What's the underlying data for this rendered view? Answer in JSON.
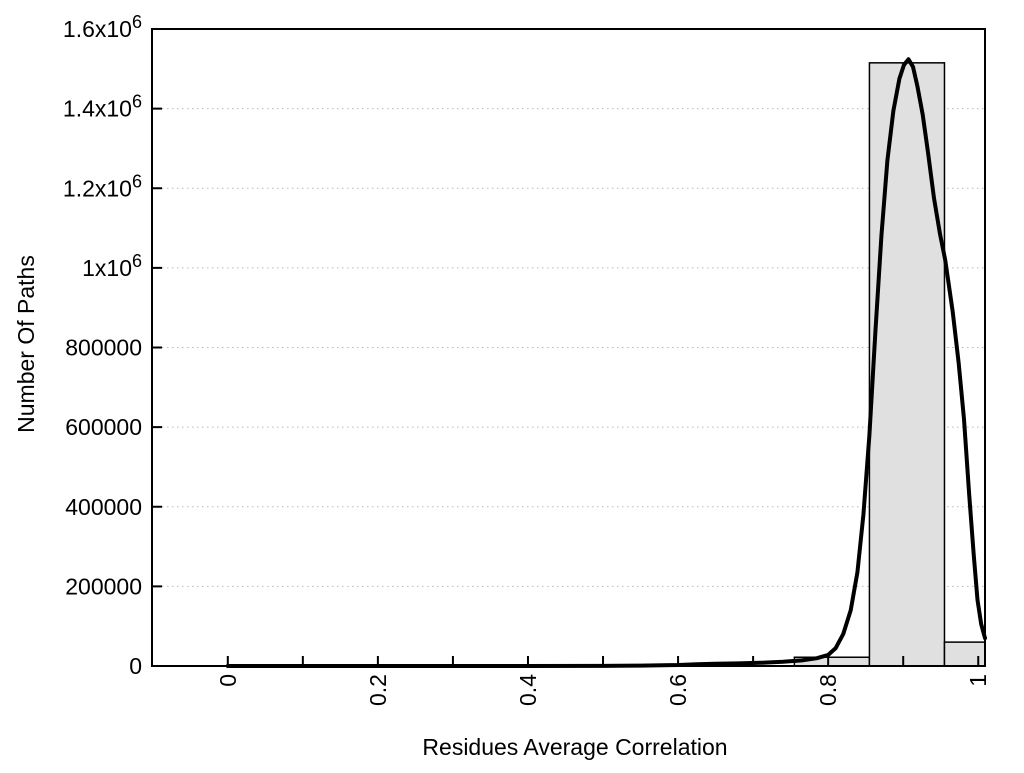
{
  "chart_data": {
    "type": "bar",
    "subtype": "histogram-with-density-curve",
    "title": "",
    "xlabel": "Residues Average Correlation",
    "ylabel": "Number Of Paths",
    "xlim": [
      -0.101,
      1.009
    ],
    "ylim": [
      0,
      1600000
    ],
    "grid": "horizontal dotted lines at major y ticks",
    "legend": "none",
    "x_major_ticks": {
      "values": [
        0,
        0.2,
        0.4,
        0.6,
        0.8,
        1
      ],
      "labels": [
        "0",
        "0.2",
        "0.4",
        "0.6",
        "0.8",
        "1"
      ],
      "label_rotation_deg": -90
    },
    "x_minor_tick_values": [
      0.1,
      0.3,
      0.5,
      0.7,
      0.9
    ],
    "y_ticks": {
      "values": [
        0,
        200000,
        400000,
        600000,
        800000,
        1000000,
        1200000,
        1400000,
        1600000
      ],
      "labels": [
        "0",
        "200000",
        "400000",
        "600000",
        "800000",
        "1x10^6",
        "1.2x10^6",
        "1.4x10^6",
        "1.6x10^6"
      ]
    },
    "bars": [
      {
        "x0": 0.755,
        "x1": 0.855,
        "value": 22000
      },
      {
        "x0": 0.855,
        "x1": 0.955,
        "value": 1515000
      },
      {
        "x0": 0.955,
        "x1": 1.055,
        "value": 60000
      }
    ],
    "curve": {
      "name": "smoothed-frequency-curve",
      "points": [
        [
          0.0,
          0
        ],
        [
          0.1,
          0
        ],
        [
          0.2,
          0
        ],
        [
          0.3,
          0
        ],
        [
          0.4,
          0
        ],
        [
          0.5,
          300
        ],
        [
          0.55,
          1000
        ],
        [
          0.6,
          2500
        ],
        [
          0.625,
          4500
        ],
        [
          0.65,
          5500
        ],
        [
          0.68,
          6500
        ],
        [
          0.71,
          8000
        ],
        [
          0.74,
          10500
        ],
        [
          0.765,
          14000
        ],
        [
          0.785,
          19500
        ],
        [
          0.8,
          28000
        ],
        [
          0.81,
          45000
        ],
        [
          0.82,
          80000
        ],
        [
          0.83,
          140000
        ],
        [
          0.839,
          235000
        ],
        [
          0.847,
          380000
        ],
        [
          0.855,
          580000
        ],
        [
          0.863,
          840000
        ],
        [
          0.871,
          1080000
        ],
        [
          0.879,
          1270000
        ],
        [
          0.887,
          1395000
        ],
        [
          0.895,
          1475000
        ],
        [
          0.901,
          1510000
        ],
        [
          0.907,
          1524000
        ],
        [
          0.913,
          1505000
        ],
        [
          0.919,
          1455000
        ],
        [
          0.926,
          1385000
        ],
        [
          0.933,
          1290000
        ],
        [
          0.941,
          1175000
        ],
        [
          0.949,
          1085000
        ],
        [
          0.956,
          1020000
        ],
        [
          0.966,
          890000
        ],
        [
          0.974,
          760000
        ],
        [
          0.981,
          620000
        ],
        [
          0.988,
          430000
        ],
        [
          0.994,
          280000
        ],
        [
          0.999,
          166000
        ],
        [
          1.004,
          105000
        ],
        [
          1.009,
          70000
        ]
      ]
    },
    "colors": {
      "background": "#ffffff",
      "bar_fill": "#e0e0e0",
      "bar_stroke": "#000000",
      "curve": "#000000",
      "grid": "#b9b9b9",
      "axis": "#000000",
      "text": "#000000"
    }
  }
}
